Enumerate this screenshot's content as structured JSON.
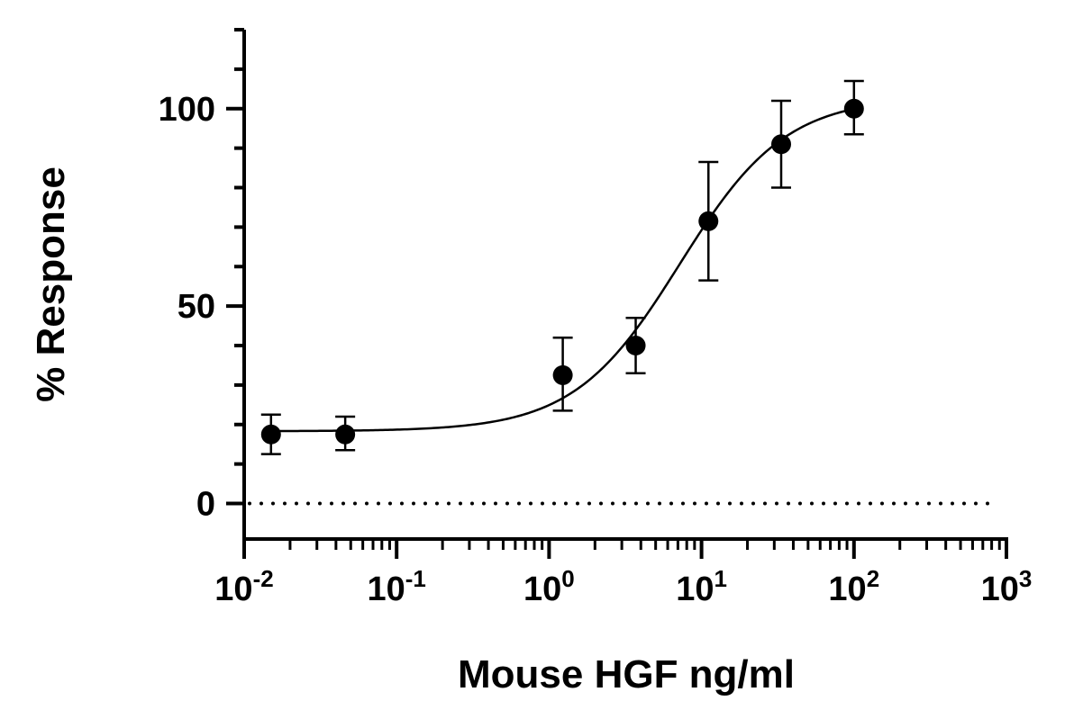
{
  "chart_data": {
    "type": "scatter",
    "title": "",
    "xlabel": "Mouse HGF ng/ml",
    "ylabel": "% Response",
    "x_scale": "log",
    "xlim": [
      0.01,
      1000
    ],
    "ylim": [
      -9,
      120
    ],
    "x_ticks": [
      {
        "base": "10",
        "exp": "-2",
        "value": 0.01
      },
      {
        "base": "10",
        "exp": "-1",
        "value": 0.1
      },
      {
        "base": "10",
        "exp": "0",
        "value": 1
      },
      {
        "base": "10",
        "exp": "1",
        "value": 10
      },
      {
        "base": "10",
        "exp": "2",
        "value": 100
      },
      {
        "base": "10",
        "exp": "3",
        "value": 1000
      }
    ],
    "y_ticks": [
      {
        "label": "0",
        "value": 0
      },
      {
        "label": "50",
        "value": 50
      },
      {
        "label": "100",
        "value": 100
      }
    ],
    "y_minor_step": 10,
    "baseline": {
      "y": 0,
      "style": "dotted"
    },
    "series": [
      {
        "points": [
          {
            "x": 0.015,
            "y": 17.5,
            "err_low": 12.5,
            "err_high": 22.5
          },
          {
            "x": 0.046,
            "y": 17.5,
            "err_low": 13.5,
            "err_high": 22
          },
          {
            "x": 1.23,
            "y": 32.5,
            "err_low": 23.5,
            "err_high": 42
          },
          {
            "x": 3.7,
            "y": 40,
            "err_low": 33,
            "err_high": 47
          },
          {
            "x": 11.1,
            "y": 71.5,
            "err_low": 56.5,
            "err_high": 86.5
          },
          {
            "x": 33.3,
            "y": 91,
            "err_low": 80,
            "err_high": 102
          },
          {
            "x": 100,
            "y": 100,
            "err_low": 93.5,
            "err_high": 107
          }
        ],
        "fit": {
          "model": "four-parameter logistic",
          "bottom": 18.3,
          "top": 103,
          "ec50": 7.2,
          "hill": 1.25,
          "x_range": [
            0.015,
            100
          ]
        }
      }
    ],
    "grid": false,
    "legend": "none",
    "colors": {
      "marker": "#000000",
      "line": "#000000",
      "background": "#ffffff"
    }
  }
}
